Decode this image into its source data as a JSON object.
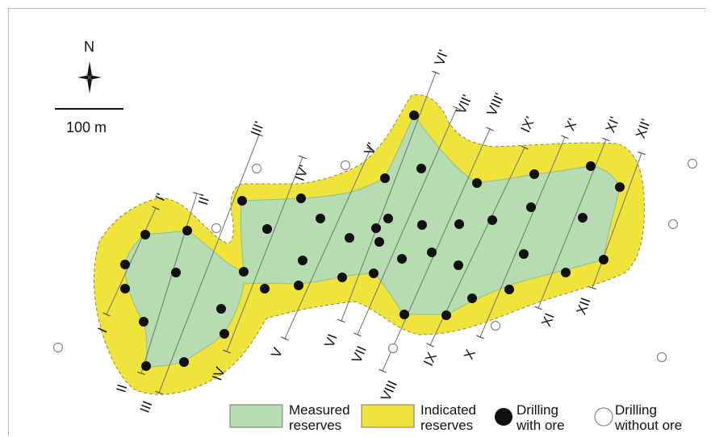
{
  "north_label": "N",
  "scale_label": "100 m",
  "colors": {
    "measured": "#b8dcb2",
    "measured_edge": "#8fbf8a",
    "indicated": "#f0e43c",
    "indicated_edge": "#8a8a3a",
    "section_line": "#7a7a7a"
  },
  "sections": [
    {
      "start": "I",
      "end": "I'"
    },
    {
      "start": "II",
      "end": "II'"
    },
    {
      "start": "III",
      "end": "III'"
    },
    {
      "start": "IV",
      "end": "IV'"
    },
    {
      "start": "V",
      "end": "V'"
    },
    {
      "start": "VI",
      "end": "VI'"
    },
    {
      "start": "VII",
      "end": "VII'"
    },
    {
      "start": "VIII",
      "end": "VIII'"
    },
    {
      "start": "IX",
      "end": "IX'"
    },
    {
      "start": "X",
      "end": "X'"
    },
    {
      "start": "XI",
      "end": "XI'"
    },
    {
      "start": "XII",
      "end": "XII'"
    }
  ],
  "legend": {
    "measured": "Measured reserves",
    "indicated": "Indicated reserves",
    "with_ore": "Drilling with ore",
    "without_ore": "Drilling without ore"
  }
}
